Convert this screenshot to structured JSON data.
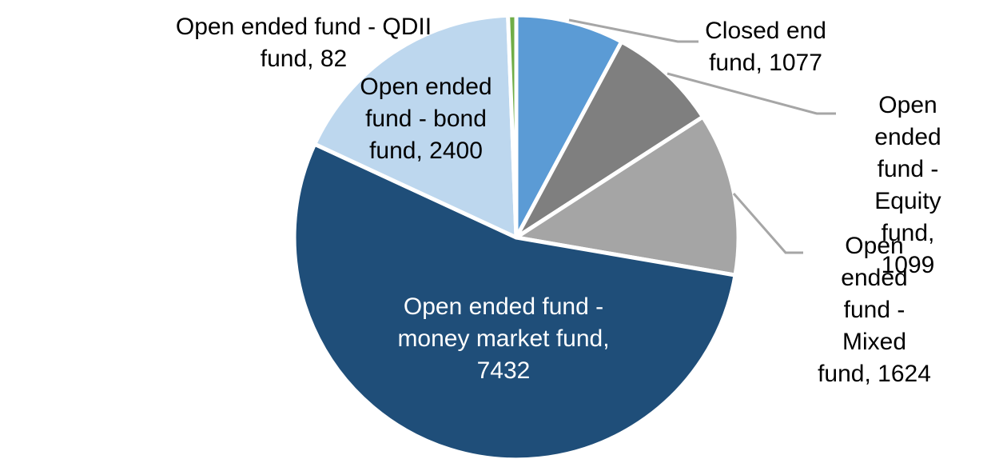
{
  "chart_data": {
    "type": "pie",
    "title": "",
    "start_angle_deg": 0,
    "direction": "clockwise",
    "total": 13714,
    "legend_position": "none",
    "grid": false,
    "series": [
      {
        "id": "closed-end-fund",
        "label": "Closed end fund",
        "value": 1077,
        "color": "#5B9BD5",
        "label_placement": "outside"
      },
      {
        "id": "open-ended-equity-fund",
        "label": "Open ended fund - Equity fund",
        "value": 1099,
        "color": "#7F7F7F",
        "label_placement": "outside"
      },
      {
        "id": "open-ended-mixed-fund",
        "label": "Open ended fund - Mixed fund",
        "value": 1624,
        "color": "#A5A5A5",
        "label_placement": "outside"
      },
      {
        "id": "open-ended-money-market-fund",
        "label": "Open ended fund - money market fund",
        "value": 7432,
        "color": "#1F4E79",
        "label_placement": "inside"
      },
      {
        "id": "open-ended-bond-fund",
        "label": "Open ended fund - bond fund",
        "value": 2400,
        "color": "#BDD7EE",
        "label_placement": "inside"
      },
      {
        "id": "open-ended-qdii-fund",
        "label": "Open ended fund - QDII fund",
        "value": 82,
        "color": "#70AD47",
        "label_placement": "outside"
      }
    ],
    "colors": {
      "slice_border": "#FFFFFF",
      "leader_line": "#A6A6A6",
      "outside_label_text": "#000000",
      "inside_label_text": "#FFFFFF"
    }
  },
  "labels": {
    "qdii": "Open ended fund - QDII\nfund, 82",
    "bond": "Open ended\nfund - bond\nfund, 2400",
    "closed_end": "Closed end\nfund, 1077",
    "equity": "Open ended\nfund - Equity\nfund, 1099",
    "mixed": "Open ended\nfund - Mixed\nfund, 1624",
    "money_market": "Open ended fund -\nmoney market fund,\n7432"
  }
}
